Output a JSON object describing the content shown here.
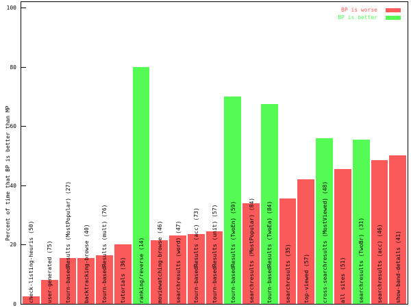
{
  "chart_data": {
    "type": "bar",
    "title": "",
    "xlabel": "",
    "ylabel": "Percent of time that BP is better than MP",
    "ylim": [
      0,
      100
    ],
    "yticks": [
      0,
      20,
      40,
      60,
      80,
      100
    ],
    "legend_position": "top-right",
    "grid": false,
    "legend": [
      {
        "label": "BP is worse",
        "color": "#fa5a5a"
      },
      {
        "label": "BP is better",
        "color": "#55fa55"
      }
    ],
    "bars": [
      {
        "label": "check-listing-heuris (50)",
        "value": 2.5,
        "bp_better": false
      },
      {
        "label": "user-generated (75)",
        "value": 8,
        "bp_better": false
      },
      {
        "label": "tourn-basedResults (MostPopular) (27)",
        "value": 15.5,
        "bp_better": false
      },
      {
        "label": "backtracking-browse (40)",
        "value": 15.5,
        "bp_better": false
      },
      {
        "label": "tourn-basedResults (mult) (76)",
        "value": 16.5,
        "bp_better": false
      },
      {
        "label": "tutorials (36)",
        "value": 20,
        "bp_better": false
      },
      {
        "label": "ranking/reverse (14)",
        "value": 80,
        "bp_better": true
      },
      {
        "label": "moviewatching-browse (46)",
        "value": 21.5,
        "bp_better": false
      },
      {
        "label": "searchresults (word) (47)",
        "value": 23,
        "bp_better": false
      },
      {
        "label": "tourn-basedResults (acc) (73)",
        "value": 23.5,
        "bp_better": false
      },
      {
        "label": "tourn-basedResults (unit) (57)",
        "value": 24.5,
        "bp_better": false
      },
      {
        "label": "tourn-basedResults (TwoEn) (59)",
        "value": 70,
        "bp_better": true
      },
      {
        "label": "searchresults (MostPopular) (84)",
        "value": 34,
        "bp_better": false
      },
      {
        "label": "tourn-basedResults (TwoEa) (84)",
        "value": 67.5,
        "bp_better": true
      },
      {
        "label": "searchresults (35)",
        "value": 35.5,
        "bp_better": false
      },
      {
        "label": "top-viewed (57)",
        "value": 42,
        "bp_better": false
      },
      {
        "label": "cross-searchresults (MostViewed) (48)",
        "value": 56,
        "bp_better": true
      },
      {
        "label": "all sites (51)",
        "value": 45.5,
        "bp_better": false
      },
      {
        "label": "searchresults (TwoBr) (31)",
        "value": 55.5,
        "bp_better": true
      },
      {
        "label": "searchresults (acc) (46)",
        "value": 48.5,
        "bp_better": false
      },
      {
        "label": "show-band-details (41)",
        "value": 50,
        "bp_better": false
      }
    ]
  },
  "colors": {
    "worse": "#fa5a5a",
    "better": "#55fa55",
    "axis": "#000000",
    "background": "#ffffff"
  }
}
